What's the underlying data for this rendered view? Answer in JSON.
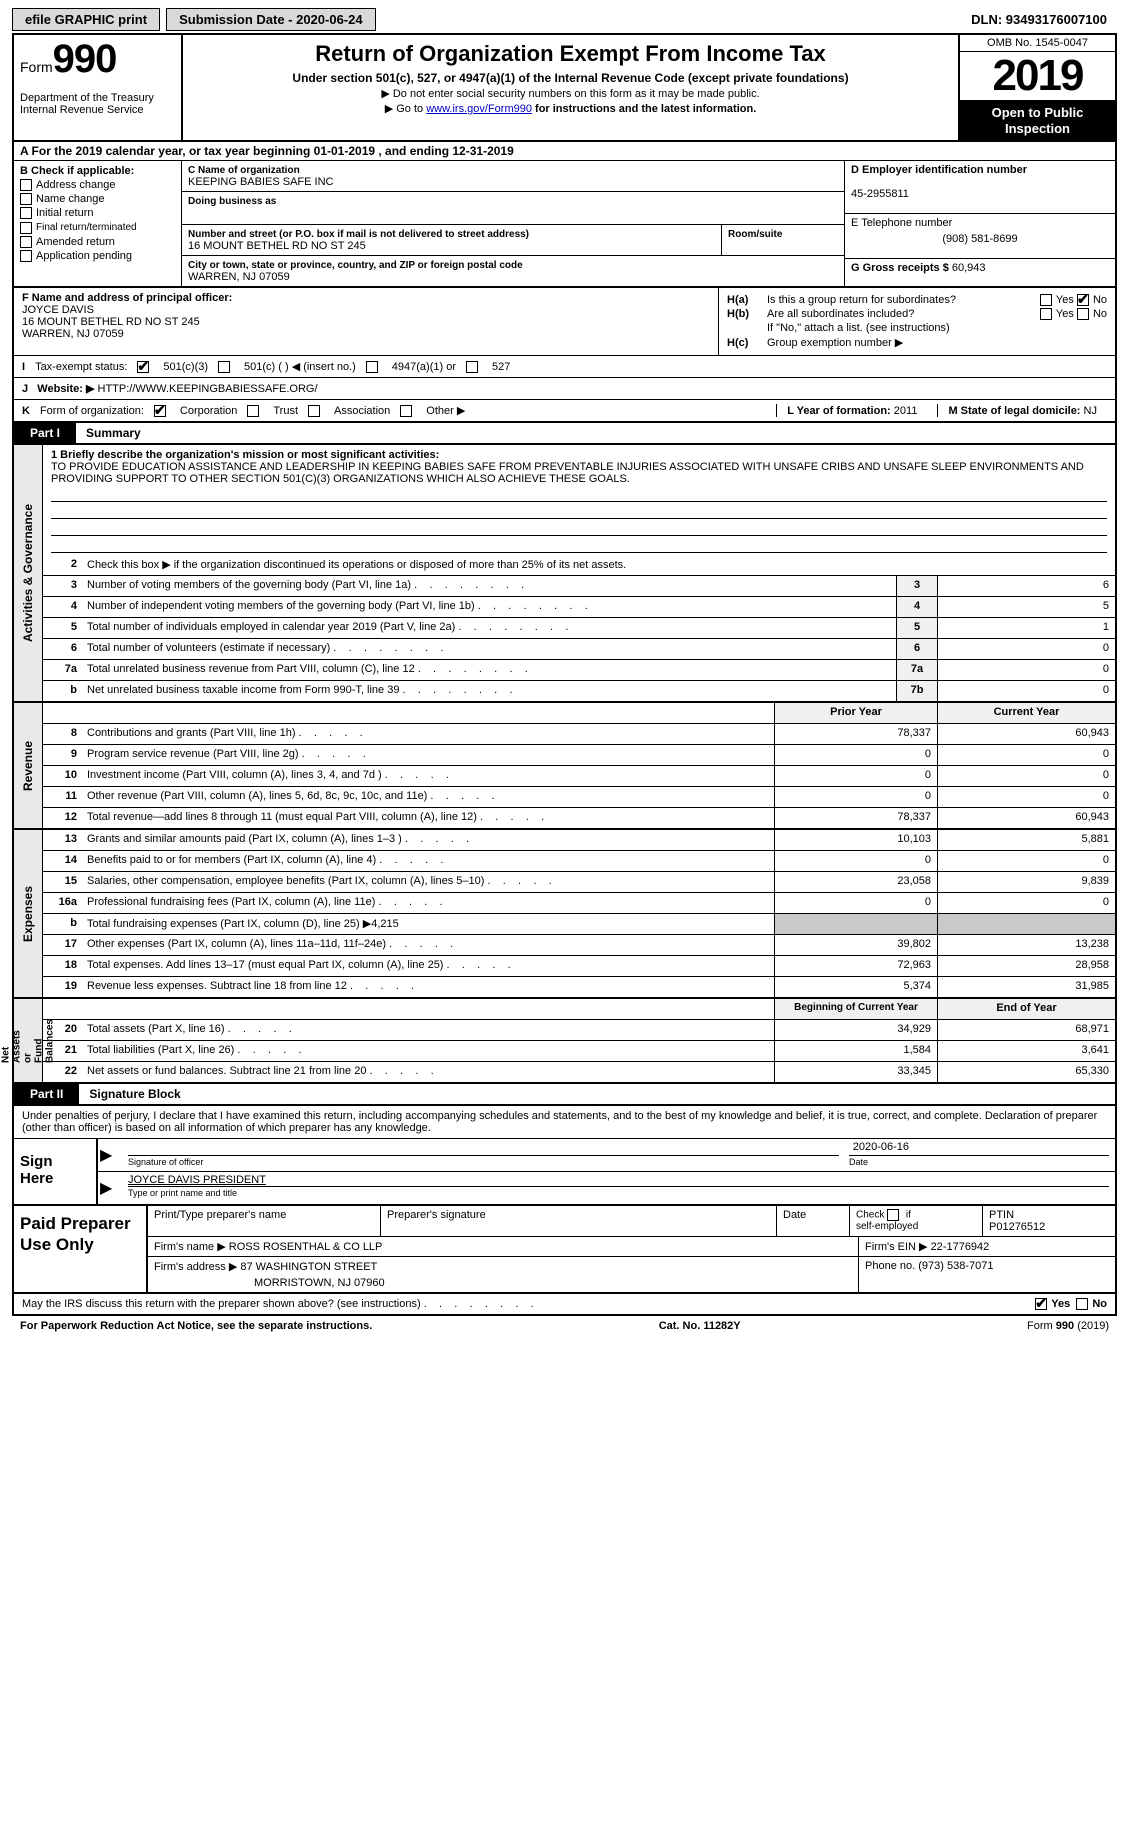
{
  "topbar": {
    "efile": "efile GRAPHIC print",
    "submission_label": "Submission Date - 2020-06-24",
    "dln": "DLN: 93493176007100"
  },
  "header": {
    "form_word": "Form",
    "form_num": "990",
    "title": "Return of Organization Exempt From Income Tax",
    "sub1": "Under section 501(c), 527, or 4947(a)(1) of the Internal Revenue Code (except private foundations)",
    "sub2": "Do not enter social security numbers on this form as it may be made public.",
    "sub3_pre": "Go to ",
    "sub3_link": "www.irs.gov/Form990",
    "sub3_post": " for instructions and the latest information.",
    "dept": "Department of the Treasury\nInternal Revenue Service",
    "omb": "OMB No. 1545-0047",
    "year": "2019",
    "inspect": "Open to Public Inspection"
  },
  "row_a": "A For the 2019 calendar year, or tax year beginning 01-01-2019    , and ending 12-31-2019",
  "box_b": {
    "title": "B Check if applicable:",
    "items": [
      "Address change",
      "Name change",
      "Initial return",
      "Final return/terminated",
      "Amended return",
      "Application pending"
    ]
  },
  "box_c": {
    "lbl_name": "C Name of organization",
    "name": "KEEPING BABIES SAFE INC",
    "dba_lbl": "Doing business as",
    "dba": "",
    "addr_lbl": "Number and street (or P.O. box if mail is not delivered to street address)",
    "room_lbl": "Room/suite",
    "addr": "16 MOUNT BETHEL RD NO ST 245",
    "city_lbl": "City or town, state or province, country, and ZIP or foreign postal code",
    "city": "WARREN, NJ  07059"
  },
  "box_d": {
    "lbl": "D Employer identification number",
    "val": "45-2955811",
    "tel_lbl": "E Telephone number",
    "tel": "(908) 581-8699",
    "gross_lbl": "G Gross receipts $",
    "gross": "60,943"
  },
  "box_f": {
    "lbl": "F Name and address of principal officer:",
    "name": "JOYCE DAVIS",
    "addr1": "16 MOUNT BETHEL RD NO ST 245",
    "addr2": "WARREN, NJ  07059"
  },
  "box_h": {
    "a_lbl": "H(a)",
    "a_txt": "Is this a group return for subordinates?",
    "a_yes": "Yes",
    "a_no": "No",
    "b_lbl": "H(b)",
    "b_txt": "Are all subordinates included?",
    "b_note": "If \"No,\" attach a list. (see instructions)",
    "c_lbl": "H(c)",
    "c_txt": "Group exemption number ▶"
  },
  "row_i": {
    "lbl": "I",
    "txt": "Tax-exempt status:",
    "o1": "501(c)(3)",
    "o2": "501(c) (   ) ◀ (insert no.)",
    "o3": "4947(a)(1) or",
    "o4": "527"
  },
  "row_j": {
    "lbl": "J",
    "txt": "Website: ▶",
    "val": "HTTP://WWW.KEEPINGBABIESSAFE.ORG/"
  },
  "row_k": {
    "lbl": "K",
    "txt": "Form of organization:",
    "o1": "Corporation",
    "o2": "Trust",
    "o3": "Association",
    "o4": "Other ▶",
    "l_lbl": "L Year of formation:",
    "l_val": "2011",
    "m_lbl": "M State of legal domicile:",
    "m_val": "NJ"
  },
  "part1": {
    "tab": "Part I",
    "title": "Summary",
    "mission_lbl": "1  Briefly describe the organization's mission or most significant activities:",
    "mission": "TO PROVIDE EDUCATION ASSISTANCE AND LEADERSHIP IN KEEPING BABIES SAFE FROM PREVENTABLE INJURIES ASSOCIATED WITH UNSAFE CRIBS AND UNSAFE SLEEP ENVIRONMENTS AND PROVIDING SUPPORT TO OTHER SECTION 501(C)(3) ORGANIZATIONS WHICH ALSO ACHIEVE THESE GOALS.",
    "line2": "Check this box ▶      if the organization discontinued its operations or disposed of more than 25% of its net assets."
  },
  "gov_lines": [
    {
      "n": "3",
      "t": "Number of voting members of the governing body (Part VI, line 1a)",
      "b": "3",
      "v": "6"
    },
    {
      "n": "4",
      "t": "Number of independent voting members of the governing body (Part VI, line 1b)",
      "b": "4",
      "v": "5"
    },
    {
      "n": "5",
      "t": "Total number of individuals employed in calendar year 2019 (Part V, line 2a)",
      "b": "5",
      "v": "1"
    },
    {
      "n": "6",
      "t": "Total number of volunteers (estimate if necessary)",
      "b": "6",
      "v": "0"
    },
    {
      "n": "7a",
      "t": "Total unrelated business revenue from Part VIII, column (C), line 12",
      "b": "7a",
      "v": "0"
    },
    {
      "n": "b",
      "t": "Net unrelated business taxable income from Form 990-T, line 39",
      "b": "7b",
      "v": "0"
    }
  ],
  "rev_hdr": {
    "py": "Prior Year",
    "cy": "Current Year"
  },
  "rev_lines": [
    {
      "n": "8",
      "t": "Contributions and grants (Part VIII, line 1h)",
      "p": "78,337",
      "c": "60,943"
    },
    {
      "n": "9",
      "t": "Program service revenue (Part VIII, line 2g)",
      "p": "0",
      "c": "0"
    },
    {
      "n": "10",
      "t": "Investment income (Part VIII, column (A), lines 3, 4, and 7d )",
      "p": "0",
      "c": "0"
    },
    {
      "n": "11",
      "t": "Other revenue (Part VIII, column (A), lines 5, 6d, 8c, 9c, 10c, and 11e)",
      "p": "0",
      "c": "0"
    },
    {
      "n": "12",
      "t": "Total revenue—add lines 8 through 11 (must equal Part VIII, column (A), line 12)",
      "p": "78,337",
      "c": "60,943"
    }
  ],
  "exp_lines": [
    {
      "n": "13",
      "t": "Grants and similar amounts paid (Part IX, column (A), lines 1–3 )",
      "p": "10,103",
      "c": "5,881"
    },
    {
      "n": "14",
      "t": "Benefits paid to or for members (Part IX, column (A), line 4)",
      "p": "0",
      "c": "0"
    },
    {
      "n": "15",
      "t": "Salaries, other compensation, employee benefits (Part IX, column (A), lines 5–10)",
      "p": "23,058",
      "c": "9,839"
    },
    {
      "n": "16a",
      "t": "Professional fundraising fees (Part IX, column (A), line 11e)",
      "p": "0",
      "c": "0"
    },
    {
      "n": "b",
      "t": "Total fundraising expenses (Part IX, column (D), line 25) ▶4,215",
      "p": "",
      "c": "",
      "shade": true
    },
    {
      "n": "17",
      "t": "Other expenses (Part IX, column (A), lines 11a–11d, 11f–24e)",
      "p": "39,802",
      "c": "13,238"
    },
    {
      "n": "18",
      "t": "Total expenses. Add lines 13–17 (must equal Part IX, column (A), line 25)",
      "p": "72,963",
      "c": "28,958"
    },
    {
      "n": "19",
      "t": "Revenue less expenses. Subtract line 18 from line 12",
      "p": "5,374",
      "c": "31,985"
    }
  ],
  "na_hdr": {
    "b": "Beginning of Current Year",
    "e": "End of Year"
  },
  "na_lines": [
    {
      "n": "20",
      "t": "Total assets (Part X, line 16)",
      "p": "34,929",
      "c": "68,971"
    },
    {
      "n": "21",
      "t": "Total liabilities (Part X, line 26)",
      "p": "1,584",
      "c": "3,641"
    },
    {
      "n": "22",
      "t": "Net assets or fund balances. Subtract line 21 from line 20",
      "p": "33,345",
      "c": "65,330"
    }
  ],
  "vlabels": {
    "gov": "Activities & Governance",
    "rev": "Revenue",
    "exp": "Expenses",
    "na": "Net Assets or\nFund Balances"
  },
  "part2": {
    "tab": "Part II",
    "title": "Signature Block"
  },
  "perjury": "Under penalties of perjury, I declare that I have examined this return, including accompanying schedules and statements, and to the best of my knowledge and belief, it is true, correct, and complete. Declaration of preparer (other than officer) is based on all information of which preparer has any knowledge.",
  "sign": {
    "lbl": "Sign Here",
    "date": "2020-06-16",
    "sig_lbl": "Signature of officer",
    "date_lbl": "Date",
    "name": "JOYCE DAVIS PRESIDENT",
    "name_lbl": "Type or print name and title"
  },
  "prep": {
    "lbl": "Paid Preparer Use Only",
    "h1": "Print/Type preparer's name",
    "h2": "Preparer's signature",
    "h3": "Date",
    "h4": "Check      if self-employed",
    "h5": "PTIN",
    "ptin": "P01276512",
    "firm_lbl": "Firm's name   ▶",
    "firm": "ROSS ROSENTHAL & CO LLP",
    "ein_lbl": "Firm's EIN ▶",
    "ein": "22-1776942",
    "addr_lbl": "Firm's address ▶",
    "addr1": "87 WASHINGTON STREET",
    "addr2": "MORRISTOWN, NJ  07960",
    "phone_lbl": "Phone no.",
    "phone": "(973) 538-7071"
  },
  "discuss": {
    "txt": "May the IRS discuss this return with the preparer shown above? (see instructions)",
    "yes": "Yes",
    "no": "No"
  },
  "footer": {
    "l": "For Paperwork Reduction Act Notice, see the separate instructions.",
    "m": "Cat. No. 11282Y",
    "r": "Form 990 (2019)"
  }
}
